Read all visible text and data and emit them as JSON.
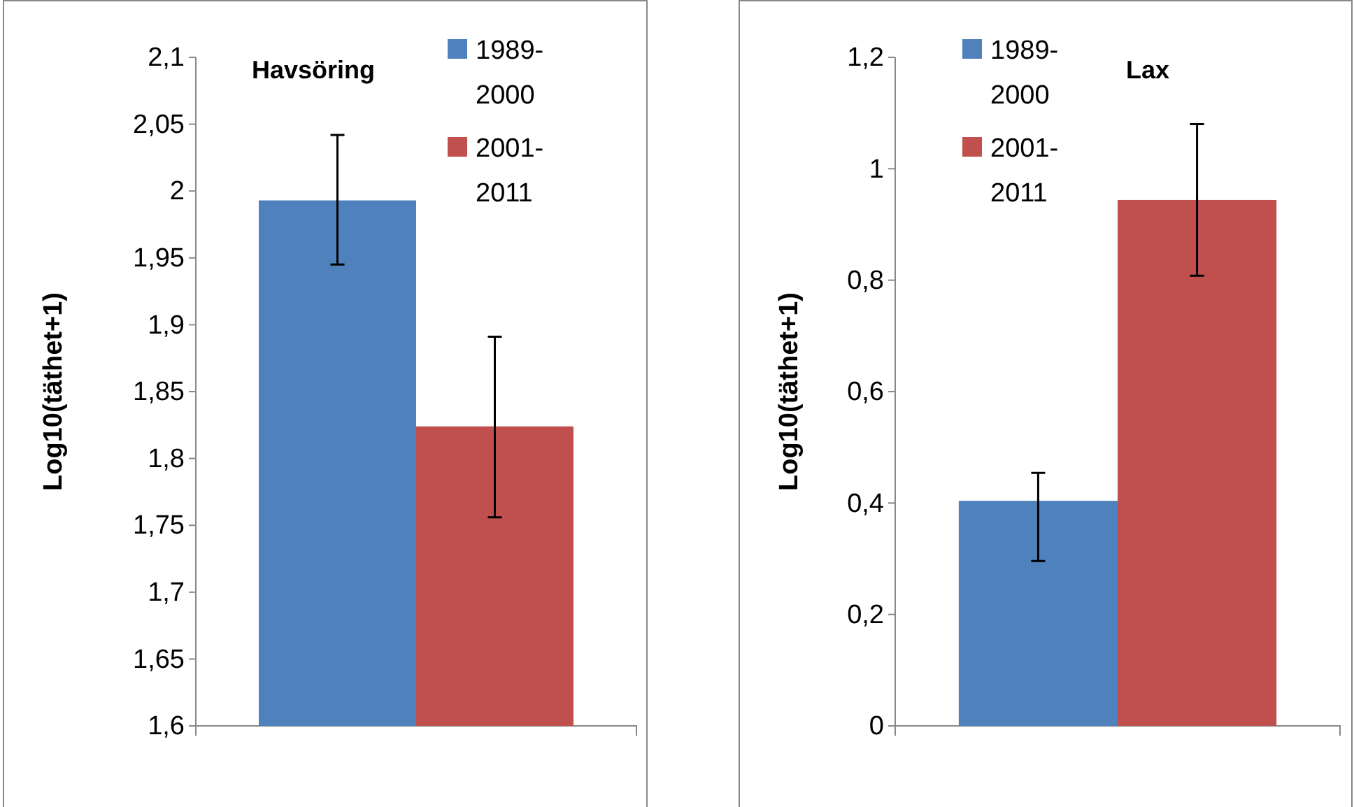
{
  "chart_data": [
    {
      "type": "bar",
      "title": "Havsöring",
      "ylabel": "Log10(täthet+1)",
      "categories": [
        null
      ],
      "ylim": [
        1.6,
        2.1
      ],
      "yticks": [
        {
          "value": 1.6,
          "label": "1,6"
        },
        {
          "value": 1.65,
          "label": "1,65"
        },
        {
          "value": 1.7,
          "label": "1,7"
        },
        {
          "value": 1.75,
          "label": "1,75"
        },
        {
          "value": 1.8,
          "label": "1,8"
        },
        {
          "value": 1.85,
          "label": "1,85"
        },
        {
          "value": 1.9,
          "label": "1,9"
        },
        {
          "value": 1.95,
          "label": "1,95"
        },
        {
          "value": 2.0,
          "label": "2"
        },
        {
          "value": 2.05,
          "label": "2,05"
        },
        {
          "value": 2.1,
          "label": "2,1"
        }
      ],
      "legend": "top right",
      "series": [
        {
          "name": "1989-2000",
          "color": "#4f81bd",
          "values": [
            1.993
          ],
          "errors": [
            [
              1.945,
              2.042
            ]
          ]
        },
        {
          "name": "2001-2011",
          "color": "#c0504d",
          "values": [
            1.824
          ],
          "errors": [
            [
              1.756,
              1.891
            ]
          ]
        }
      ]
    },
    {
      "type": "bar",
      "title": "Lax",
      "ylabel": "Log10(täthet+1)",
      "categories": [
        null
      ],
      "ylim": [
        0,
        1.2
      ],
      "yticks": [
        {
          "value": 0,
          "label": "0"
        },
        {
          "value": 0.2,
          "label": "0,2"
        },
        {
          "value": 0.4,
          "label": "0,4"
        },
        {
          "value": 0.6,
          "label": "0,6"
        },
        {
          "value": 0.8,
          "label": "0,8"
        },
        {
          "value": 1.0,
          "label": "1"
        },
        {
          "value": 1.2,
          "label": "1,2"
        }
      ],
      "legend": "top left",
      "series": [
        {
          "name": "1989-2000",
          "color": "#4f81bd",
          "values": [
            0.404
          ],
          "errors": [
            [
              0.296,
              0.454
            ]
          ]
        },
        {
          "name": "2001-2011",
          "color": "#c0504d",
          "values": [
            0.944
          ],
          "errors": [
            [
              0.808,
              1.08
            ]
          ]
        }
      ]
    }
  ]
}
